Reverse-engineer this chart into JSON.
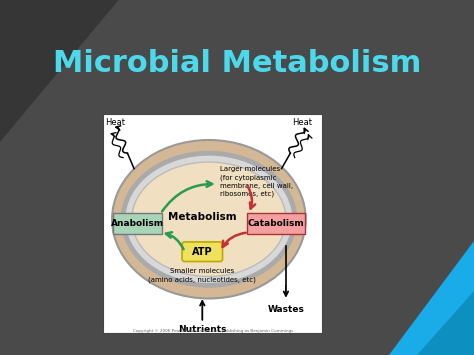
{
  "title": "Microbial Metabolism",
  "title_color": "#4DD9EC",
  "title_fontsize": 22,
  "slide_bg": "#4a4a4a",
  "slide_bg2": "#606060",
  "diagram_bg": "#ffffff",
  "ellipse_outer_color": "#d4b896",
  "ellipse_inner_color": "#f0dfc0",
  "anabolism_box_color": "#a8d4b8",
  "catabolism_box_color": "#f4a0a0",
  "atp_box_color": "#f0e060",
  "green_arrow_color": "#2a9a50",
  "red_arrow_color": "#c83030",
  "metabolism_label": "Metabolism",
  "anabolism_label": "Anabolism",
  "catabolism_label": "Catabolism",
  "atp_label": "ATP",
  "larger_mol_label": "Larger molecules\n(for cytoplasmic\nmembrane, cell wall,\nribosomes, etc)",
  "smaller_mol_label": "Smaller molecules\n(amino acids, nucleotides, etc)",
  "nutrients_label": "Nutrients",
  "wastes_label": "Wastes",
  "heat_label": "Heat",
  "copyright_label": "Copyright © 2006 Pearson Education, Inc., publishing as Benjamin Cummings",
  "blue_triangle_color": "#1AACE8",
  "dark_triangle_color": "#333333"
}
